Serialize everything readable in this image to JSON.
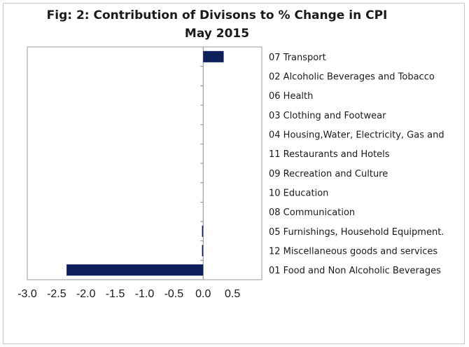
{
  "chart_data": {
    "type": "bar",
    "orientation": "horizontal",
    "title": "Fig: 2: Contribution of Divisons to % Change in CPI",
    "subtitle": "May 2015",
    "categories": [
      "07 Transport",
      "02 Alcoholic Beverages and Tobacco",
      "06 Health",
      "03 Clothing and Footwear",
      "04 Housing,Water, Electricity, Gas and",
      "11 Restaurants and Hotels",
      "09 Recreation and Culture",
      "10 Education",
      "08 Communication",
      "05 Furnishings, Household Equipment.",
      "12 Miscellaneous goods and services",
      "01 Food and Non Alcoholic Beverages"
    ],
    "values": [
      0.35,
      0.0,
      0.0,
      0.0,
      0.0,
      0.0,
      0.0,
      0.0,
      0.0,
      -0.02,
      -0.02,
      -2.33
    ],
    "xlim": [
      -3.0,
      1.0
    ],
    "xticks": [
      "-3.0",
      "-2.5",
      "-2.0",
      "-1.5",
      "-1.0",
      "-0.5",
      "0.0",
      "0.5"
    ],
    "xtick_values": [
      -3.0,
      -2.5,
      -2.0,
      -1.5,
      -1.0,
      -0.5,
      0.0,
      0.5
    ],
    "bar_color": "#0d1f5c",
    "grid": false,
    "legend": "none"
  }
}
